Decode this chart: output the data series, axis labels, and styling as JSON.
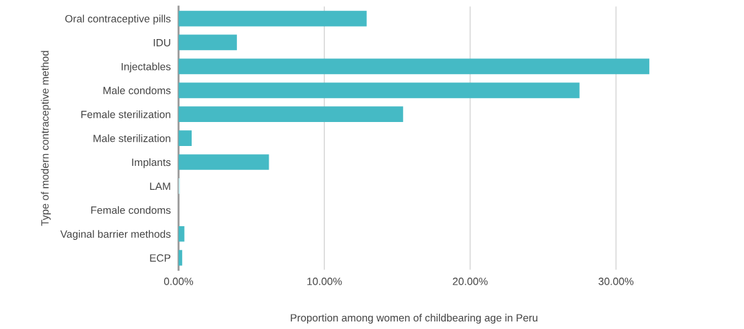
{
  "chart_data": {
    "type": "bar",
    "orientation": "horizontal",
    "xlabel": "Proportion among women of childbearing age in Peru",
    "ylabel": "Type of modern contraceptive method",
    "categories": [
      "Oral contraceptive pills",
      "IDU",
      "Injectables",
      "Male condoms",
      "Female sterilization",
      "Male sterilization",
      "Implants",
      "LAM",
      "Female condoms",
      "Vaginal barrier methods",
      "ECP"
    ],
    "values": [
      12.9,
      4.0,
      32.3,
      27.5,
      15.4,
      0.9,
      6.2,
      0.1,
      0,
      0.4,
      0.25
    ],
    "colors": [
      "#45bac5",
      "#45bac5",
      "#45bac5",
      "#45bac5",
      "#45bac5",
      "#45bac5",
      "#45bac5",
      "#c8ecef",
      "#45bac5",
      "#45bac5",
      "#45bac5"
    ],
    "xlim": [
      0,
      32.3
    ],
    "xticks": [
      {
        "value": 0,
        "label": "0.00%"
      },
      {
        "value": 10,
        "label": "10.00%"
      },
      {
        "value": 20,
        "label": "20.00%"
      },
      {
        "value": 30,
        "label": "30.00%"
      }
    ],
    "grid": "x",
    "legend": false
  }
}
